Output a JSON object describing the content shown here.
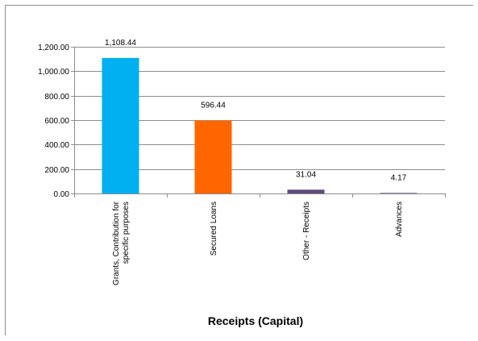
{
  "chart_data": {
    "type": "bar",
    "title": "",
    "xlabel": "Receipts (Capital)",
    "ylabel": "",
    "ylim": [
      0,
      1200
    ],
    "yticks": [
      "0.00",
      "200.00",
      "400.00",
      "600.00",
      "800.00",
      "1,000.00",
      "1,200.00"
    ],
    "ytick_values": [
      0,
      200,
      400,
      600,
      800,
      1000,
      1200
    ],
    "grid": true,
    "legend": "none",
    "categories": [
      [
        "Grants, Contribution for",
        "specific purposes"
      ],
      [
        "Secured Loans"
      ],
      [
        "Other - Receipts"
      ],
      [
        "Advances"
      ]
    ],
    "values": [
      1108.44,
      596.44,
      31.04,
      4.17
    ],
    "value_labels": [
      "1,108.44",
      "596.44",
      "31.04",
      "4.17"
    ],
    "colors": [
      "#00B0F0",
      "#FF6600",
      "#604A7B",
      "#604A7B"
    ],
    "gridline_color": "#8c8c8c",
    "axis_color": "#8c8c8c"
  }
}
